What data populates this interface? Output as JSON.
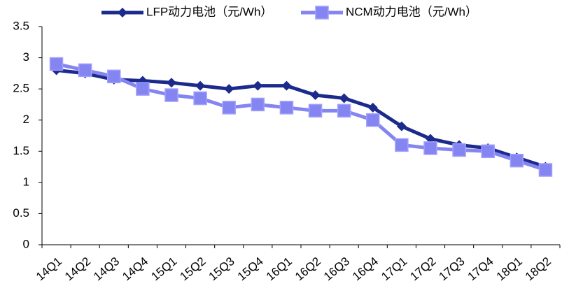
{
  "chart_data": {
    "type": "line",
    "categories": [
      "14Q1",
      "14Q2",
      "14Q3",
      "14Q4",
      "15Q1",
      "15Q2",
      "15Q3",
      "15Q4",
      "16Q1",
      "16Q2",
      "16Q3",
      "16Q4",
      "17Q1",
      "17Q2",
      "17Q3",
      "17Q4",
      "18Q1",
      "18Q2"
    ],
    "series": [
      {
        "name": "LFP动力电池（元/Wh）",
        "color": "#1c2a8c",
        "marker": "diamond",
        "values": [
          2.8,
          2.75,
          2.65,
          2.63,
          2.6,
          2.55,
          2.5,
          2.55,
          2.55,
          2.4,
          2.35,
          2.2,
          1.9,
          1.7,
          1.6,
          1.55,
          1.4,
          1.25
        ]
      },
      {
        "name": "NCM动力电池（元/Wh）",
        "color": "#8585f2",
        "marker": "square",
        "values": [
          2.9,
          2.8,
          2.7,
          2.5,
          2.4,
          2.35,
          2.2,
          2.25,
          2.2,
          2.15,
          2.15,
          2.0,
          1.6,
          1.55,
          1.52,
          1.5,
          1.35,
          1.2
        ]
      }
    ],
    "ylim": [
      0,
      3.5
    ],
    "yticks": [
      0,
      0.5,
      1,
      1.5,
      2,
      2.5,
      3,
      3.5
    ],
    "grid": false,
    "legend": "top"
  }
}
